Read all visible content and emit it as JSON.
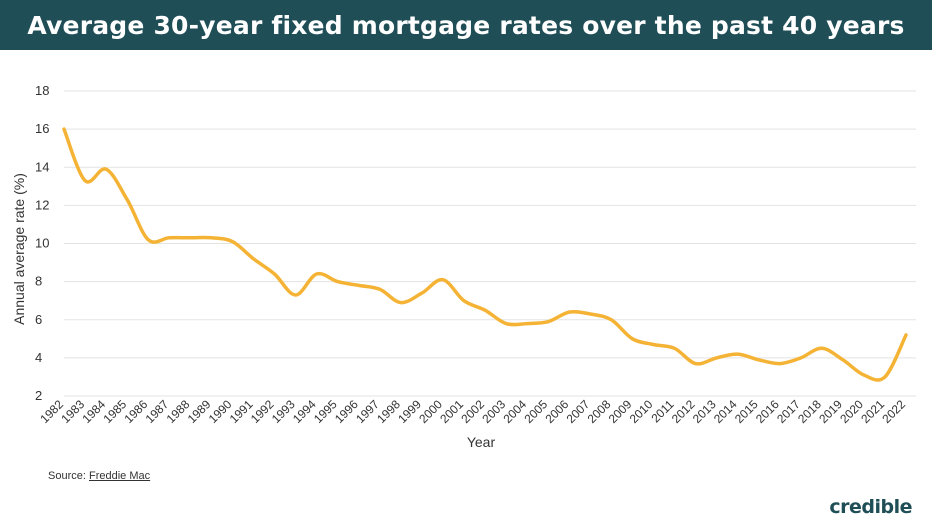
{
  "title": "Average 30-year fixed mortgage rates over the past 40 years",
  "source": {
    "label": "Source:",
    "link_text": "Freddie Mac"
  },
  "logo_text": "credible",
  "colors": {
    "title_bg": "#1f4e57",
    "line": "#f5b335",
    "grid": "#e3e3e3",
    "text": "#333333"
  },
  "chart_data": {
    "type": "line",
    "title": "Average 30-year fixed mortgage rates over the past 40 years",
    "xlabel": "Year",
    "ylabel": "Annual average rate (%)",
    "ylim": [
      2,
      18
    ],
    "yticks": [
      2,
      4,
      6,
      8,
      10,
      12,
      14,
      16,
      18
    ],
    "grid": true,
    "legend": "none",
    "categories": [
      "1982",
      "1983",
      "1984",
      "1985",
      "1986",
      "1987",
      "1988",
      "1989",
      "1990",
      "1991",
      "1992",
      "1993",
      "1994",
      "1995",
      "1996",
      "1997",
      "1998",
      "1999",
      "2000",
      "2001",
      "2002",
      "2003",
      "2004",
      "2005",
      "2006",
      "2007",
      "2008",
      "2009",
      "2010",
      "2011",
      "2012",
      "2013",
      "2014",
      "2015",
      "2016",
      "2017",
      "2018",
      "2019",
      "2020",
      "2021",
      "2022"
    ],
    "series": [
      {
        "values": [
          16.0,
          13.3,
          13.9,
          12.3,
          10.2,
          10.3,
          10.3,
          10.3,
          10.1,
          9.2,
          8.4,
          7.3,
          8.4,
          8.0,
          7.8,
          7.6,
          6.9,
          7.4,
          8.1,
          7.0,
          6.5,
          5.8,
          5.8,
          5.9,
          6.4,
          6.3,
          6.0,
          5.0,
          4.7,
          4.5,
          3.7,
          4.0,
          4.2,
          3.9,
          3.7,
          4.0,
          4.5,
          3.9,
          3.1,
          3.0,
          5.2
        ]
      }
    ]
  }
}
